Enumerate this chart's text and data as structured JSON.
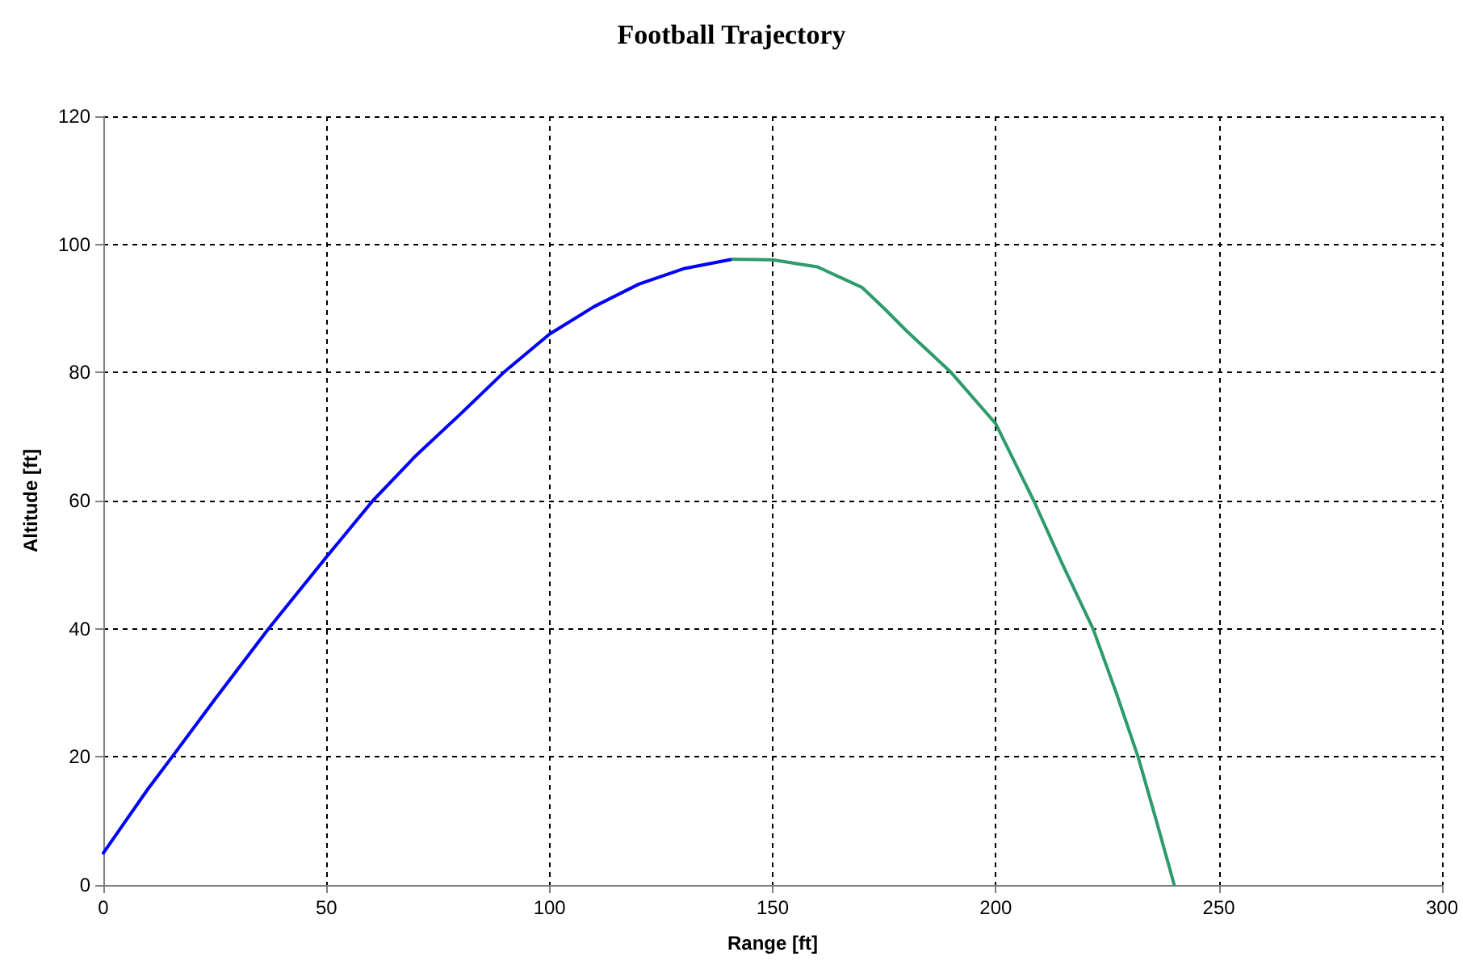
{
  "chart_data": {
    "type": "line",
    "title": "Football Trajectory",
    "xlabel": "Range [ft]",
    "ylabel": "Altitude [ft]",
    "xlim": [
      0,
      300
    ],
    "xticks": [
      0,
      50,
      100,
      150,
      200,
      250,
      300
    ],
    "ylim": [
      0,
      120
    ],
    "yticks": [
      0,
      20,
      40,
      60,
      80,
      100,
      120
    ],
    "grid": true,
    "marker": "none",
    "line_style": "solid",
    "series": [
      {
        "color": "#0000ff",
        "x": [
          0,
          5,
          10,
          15.4,
          25,
          37,
          50,
          60.4,
          70,
          80,
          89.7,
          100,
          110,
          120,
          130,
          141
        ],
        "values": [
          5,
          10,
          15,
          20,
          29,
          40,
          51.2,
          60,
          67,
          73.5,
          80,
          86,
          90.3,
          93.8,
          96.2,
          97.7
        ]
      },
      {
        "color": "#2e9b6b",
        "x": [
          141,
          150,
          160,
          170,
          175,
          180,
          190,
          200,
          208.5,
          215,
          221.8,
          227,
          231.9,
          236,
          240
        ],
        "values": [
          97.7,
          97.6,
          96.5,
          93.3,
          90,
          86.5,
          80,
          72,
          60,
          50,
          40,
          30,
          20,
          10,
          0
        ]
      }
    ]
  }
}
